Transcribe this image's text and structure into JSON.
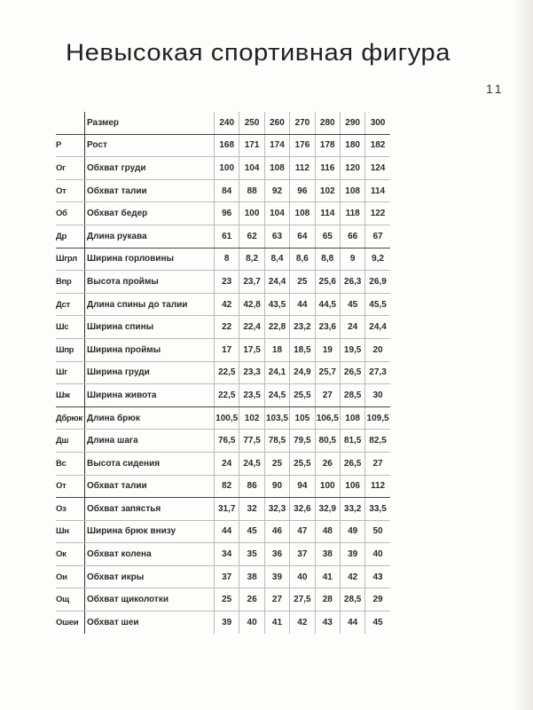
{
  "title": "Невысокая спортивная фигура",
  "page_number": "11",
  "table": {
    "header": {
      "abbr": "",
      "name": "Размер",
      "sizes": [
        "240",
        "250",
        "260",
        "270",
        "280",
        "290",
        "300"
      ]
    },
    "rows": [
      {
        "abbr": "Р",
        "name": "Рост",
        "values": [
          "168",
          "171",
          "174",
          "176",
          "178",
          "180",
          "182"
        ]
      },
      {
        "abbr": "Ог",
        "name": "Обхват груди",
        "values": [
          "100",
          "104",
          "108",
          "112",
          "116",
          "120",
          "124"
        ]
      },
      {
        "abbr": "От",
        "name": "Обхват талии",
        "values": [
          "84",
          "88",
          "92",
          "96",
          "102",
          "108",
          "114"
        ]
      },
      {
        "abbr": "Об",
        "name": "Обхват бедер",
        "values": [
          "96",
          "100",
          "104",
          "108",
          "114",
          "118",
          "122"
        ]
      },
      {
        "abbr": "Др",
        "name": "Длина рукава",
        "values": [
          "61",
          "62",
          "63",
          "64",
          "65",
          "66",
          "67"
        ]
      },
      {
        "abbr": "Шгрл",
        "name": "Ширина горловины",
        "values": [
          "8",
          "8,2",
          "8,4",
          "8,6",
          "8,8",
          "9",
          "9,2"
        ]
      },
      {
        "abbr": "Впр",
        "name": "Высота проймы",
        "values": [
          "23",
          "23,7",
          "24,4",
          "25",
          "25,6",
          "26,3",
          "26,9"
        ]
      },
      {
        "abbr": "Дст",
        "name": "Длина спины до талии",
        "values": [
          "42",
          "42,8",
          "43,5",
          "44",
          "44,5",
          "45",
          "45,5"
        ]
      },
      {
        "abbr": "Шс",
        "name": "Ширина спины",
        "values": [
          "22",
          "22,4",
          "22,8",
          "23,2",
          "23,6",
          "24",
          "24,4"
        ]
      },
      {
        "abbr": "Шпр",
        "name": "Ширина проймы",
        "values": [
          "17",
          "17,5",
          "18",
          "18,5",
          "19",
          "19,5",
          "20"
        ]
      },
      {
        "abbr": "Шг",
        "name": "Ширина груди",
        "values": [
          "22,5",
          "23,3",
          "24,1",
          "24,9",
          "25,7",
          "26,5",
          "27,3"
        ]
      },
      {
        "abbr": "Шж",
        "name": "Ширина живота",
        "values": [
          "22,5",
          "23,5",
          "24,5",
          "25,5",
          "27",
          "28,5",
          "30"
        ]
      },
      {
        "abbr": "Дбрюк",
        "name": "Длина брюк",
        "values": [
          "100,5",
          "102",
          "103,5",
          "105",
          "106,5",
          "108",
          "109,5"
        ]
      },
      {
        "abbr": "Дш",
        "name": "Длина шага",
        "values": [
          "76,5",
          "77,5",
          "78,5",
          "79,5",
          "80,5",
          "81,5",
          "82,5"
        ]
      },
      {
        "abbr": "Вс",
        "name": "Высота сидения",
        "values": [
          "24",
          "24,5",
          "25",
          "25,5",
          "26",
          "26,5",
          "27"
        ]
      },
      {
        "abbr": "От",
        "name": "Обхват талии",
        "values": [
          "82",
          "86",
          "90",
          "94",
          "100",
          "106",
          "112"
        ]
      },
      {
        "abbr": "Оз",
        "name": "Обхват запястья",
        "values": [
          "31,7",
          "32",
          "32,3",
          "32,6",
          "32,9",
          "33,2",
          "33,5"
        ]
      },
      {
        "abbr": "Шн",
        "name": "Ширина брюк внизу",
        "values": [
          "44",
          "45",
          "46",
          "47",
          "48",
          "49",
          "50"
        ]
      },
      {
        "abbr": "Ок",
        "name": "Обхват колена",
        "values": [
          "34",
          "35",
          "36",
          "37",
          "38",
          "39",
          "40"
        ]
      },
      {
        "abbr": "Ои",
        "name": "Обхват икры",
        "values": [
          "37",
          "38",
          "39",
          "40",
          "41",
          "42",
          "43"
        ]
      },
      {
        "abbr": "Ощ",
        "name": "Обхват щиколотки",
        "values": [
          "25",
          "26",
          "27",
          "27,5",
          "28",
          "28,5",
          "29"
        ]
      },
      {
        "abbr": "Ошеи",
        "name": "Обхват шеи",
        "values": [
          "39",
          "40",
          "41",
          "42",
          "43",
          "44",
          "45"
        ]
      }
    ]
  }
}
